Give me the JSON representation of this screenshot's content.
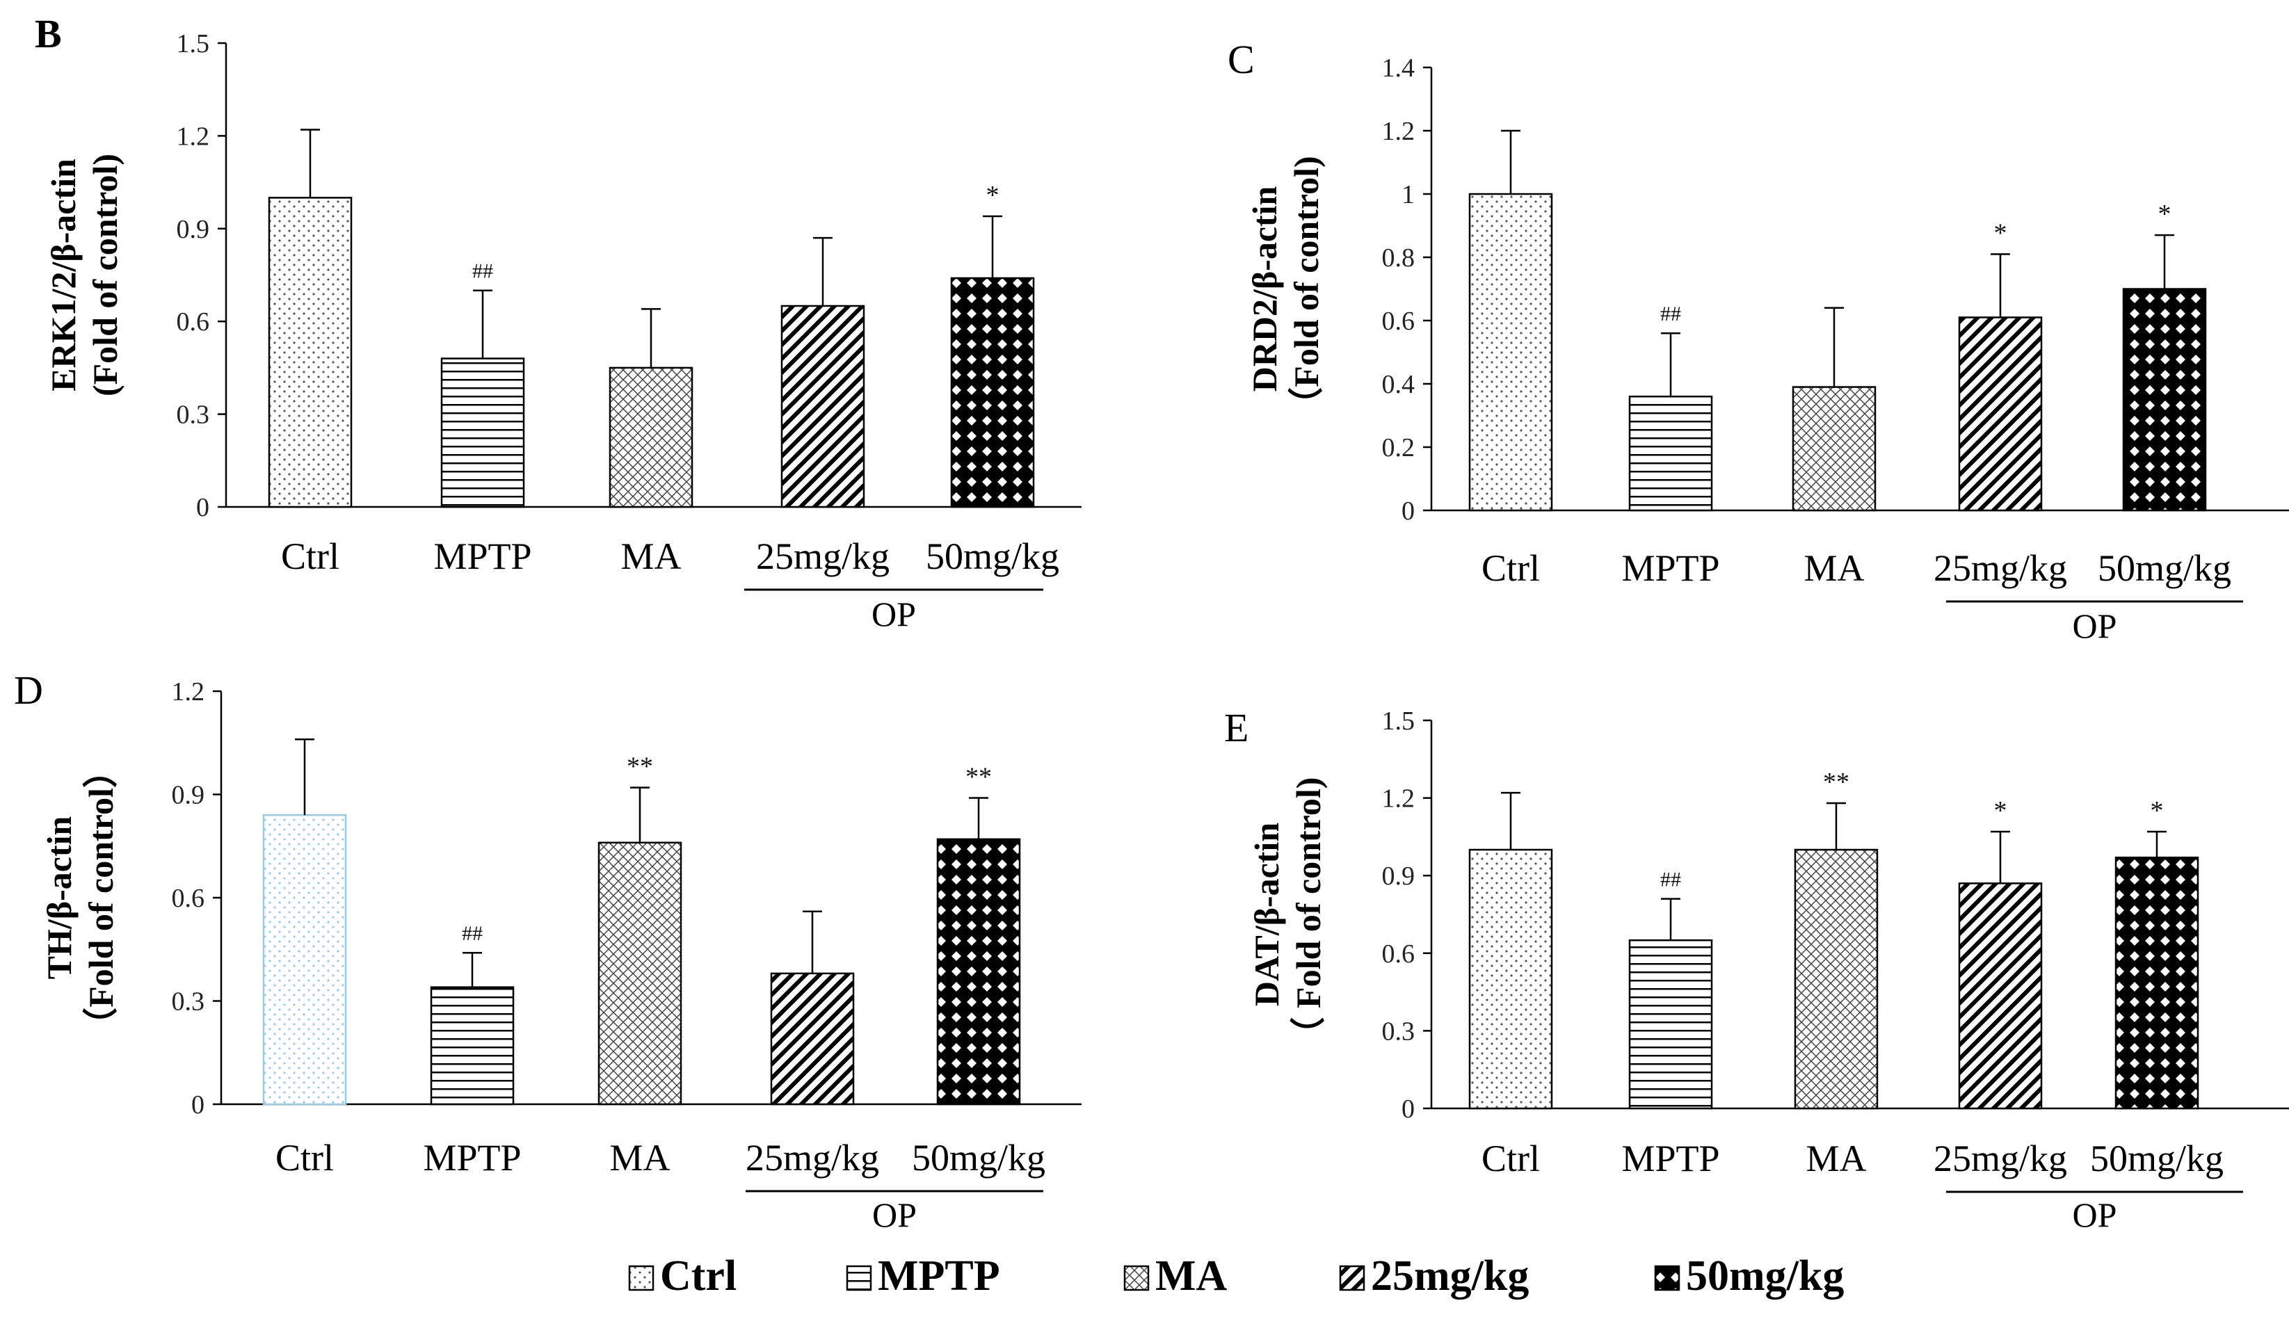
{
  "figure": {
    "legend": [
      {
        "label": "Ctrl",
        "pattern": "dots"
      },
      {
        "label": "MPTP",
        "pattern": "hlines"
      },
      {
        "label": "MA",
        "pattern": "crosshatch"
      },
      {
        "label": "25mg/kg",
        "pattern": "diagonal"
      },
      {
        "label": "50mg/kg",
        "pattern": "checker"
      }
    ],
    "colors": {
      "axis": "#000000",
      "bar_outline": "#000000",
      "ctrl_fill_D": "#9ecae1",
      "background": "#ffffff"
    }
  },
  "chart_data": [
    {
      "type": "bar",
      "panel_label": "B",
      "ylabel_line1": "ERK1/2/β-actin",
      "ylabel_line2": "(Fold of control)",
      "categories": [
        "Ctrl",
        "MPTP",
        "MA",
        "25mg/kg",
        "50mg/kg"
      ],
      "values": [
        1.0,
        0.48,
        0.45,
        0.65,
        0.74
      ],
      "errors": [
        0.22,
        0.22,
        0.19,
        0.22,
        0.2
      ],
      "significance": [
        "",
        "##",
        "",
        "",
        "*"
      ],
      "ylim": [
        0,
        1.5
      ],
      "yticks": [
        "0",
        "0.3",
        "0.6",
        "0.9",
        "1.2",
        "1.5"
      ],
      "yticks_values": [
        0,
        0.3,
        0.6,
        0.9,
        1.2,
        1.5
      ],
      "group_label": "OP"
    },
    {
      "type": "bar",
      "panel_label": "C",
      "ylabel_line1": "DRD2/β-actin",
      "ylabel_line2": "（Fold of control)",
      "categories": [
        "Ctrl",
        "MPTP",
        "MA",
        "25mg/kg",
        "50mg/kg"
      ],
      "values": [
        1.0,
        0.36,
        0.39,
        0.61,
        0.7
      ],
      "errors": [
        0.2,
        0.2,
        0.25,
        0.2,
        0.17
      ],
      "significance": [
        "",
        "##",
        "",
        "*",
        "*"
      ],
      "ylim": [
        0,
        1.4
      ],
      "yticks": [
        "0",
        "0.2",
        "0.4",
        "0.6",
        "0.8",
        "1",
        "1.2",
        "1.4"
      ],
      "yticks_values": [
        0,
        0.2,
        0.4,
        0.6,
        0.8,
        1.0,
        1.2,
        1.4
      ],
      "group_label": "OP"
    },
    {
      "type": "bar",
      "panel_label": "D",
      "ylabel_line1": "TH/β-actin",
      "ylabel_line2": "（Fold of control）",
      "categories": [
        "Ctrl",
        "MPTP",
        "MA",
        "25mg/kg",
        "50mg/kg"
      ],
      "values": [
        0.84,
        0.34,
        0.76,
        0.38,
        0.77
      ],
      "errors": [
        0.22,
        0.1,
        0.16,
        0.18,
        0.12
      ],
      "significance": [
        "",
        "##",
        "**",
        "",
        "**"
      ],
      "ylim": [
        0,
        1.2
      ],
      "yticks": [
        "0",
        "0.3",
        "0.6",
        "0.9",
        "1.2"
      ],
      "yticks_values": [
        0,
        0.3,
        0.6,
        0.9,
        1.2
      ],
      "group_label": "OP"
    },
    {
      "type": "bar",
      "panel_label": "E",
      "ylabel_line1": "DAT/β-actin",
      "ylabel_line2": "（ Fold of  control)",
      "categories": [
        "Ctrl",
        "MPTP",
        "MA",
        "25mg/kg",
        "50mg/kg"
      ],
      "values": [
        1.0,
        0.65,
        1.0,
        0.87,
        0.97
      ],
      "errors": [
        0.22,
        0.16,
        0.18,
        0.2,
        0.1
      ],
      "significance": [
        "",
        "##",
        "**",
        "*",
        "*"
      ],
      "ylim": [
        0,
        1.5
      ],
      "yticks": [
        "0",
        "0.3",
        "0.6",
        "0.9",
        "1.2",
        "1.5"
      ],
      "yticks_values": [
        0,
        0.3,
        0.6,
        0.9,
        1.2,
        1.5
      ],
      "group_label": "OP"
    }
  ]
}
